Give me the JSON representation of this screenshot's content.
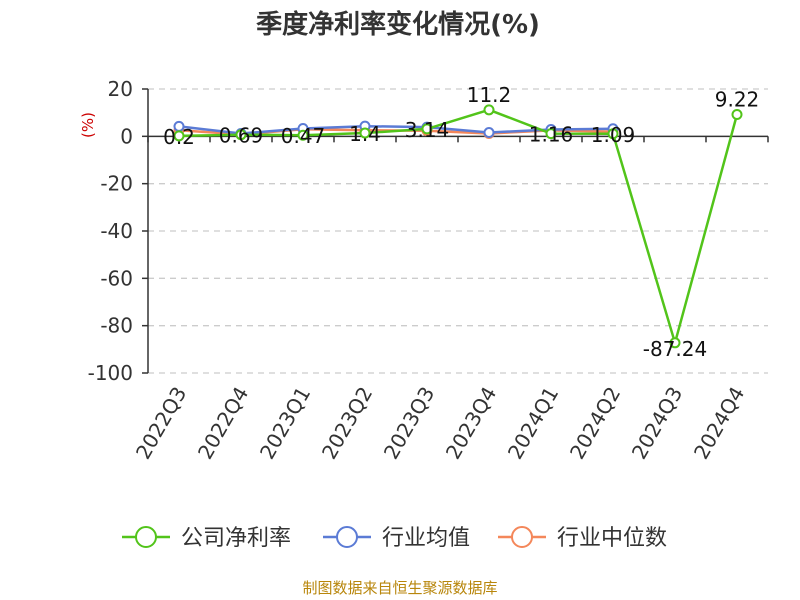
{
  "chart_data": {
    "type": "line",
    "title": "季度净利率变化情况(%)",
    "ylabel": "(%)",
    "xlabel": "",
    "categories": [
      "2022Q3",
      "2022Q4",
      "2023Q1",
      "2023Q2",
      "2023Q3",
      "2023Q4",
      "2024Q1",
      "2024Q2",
      "2024Q3",
      "2024Q4"
    ],
    "ylim": [
      -100,
      20
    ],
    "yticks": [
      20,
      0,
      -20,
      -40,
      -60,
      -80,
      -100
    ],
    "grid": true,
    "legend_position": "bottom",
    "series": [
      {
        "name": "公司净利率",
        "color": "#52c41a",
        "values": [
          0.2,
          0.69,
          0.47,
          1.4,
          3.14,
          11.2,
          1.16,
          1.09,
          -87.24,
          9.22
        ],
        "labels": [
          "0.2",
          "0.69",
          "0.47",
          "1.4",
          "3.14",
          "11.2",
          "1.16",
          "1.09",
          "-87.24",
          "9.22"
        ]
      },
      {
        "name": "行业均值",
        "color": "#5b7bd5",
        "values": [
          4.2,
          1.2,
          3.3,
          4.3,
          3.9,
          1.6,
          2.9,
          3.2,
          null,
          null
        ]
      },
      {
        "name": "行业中位数",
        "color": "#f4875a",
        "values": [
          2.6,
          0.8,
          3.0,
          2.6,
          2.4,
          1.2,
          2.5,
          2.0,
          null,
          null
        ]
      }
    ]
  },
  "footer": {
    "source": "制图数据来自恒生聚源数据库"
  }
}
